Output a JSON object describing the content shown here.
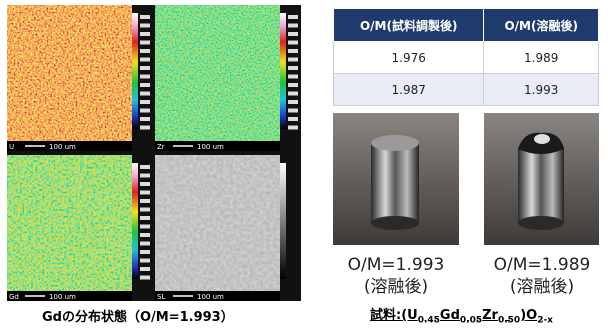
{
  "maps": [
    {
      "element": "U",
      "scale": "100 um"
    },
    {
      "element": "Zr",
      "scale": "100 um"
    },
    {
      "element": "Gd",
      "scale": "100 um"
    },
    {
      "element": "SL",
      "scale": "100 um"
    }
  ],
  "map_caption": "Gdの分布状態（O/M=1.993）",
  "table": {
    "header": [
      "O/M(試料調製後)",
      "O/M(溶融後)"
    ],
    "rows": [
      [
        "1.976",
        "1.989"
      ],
      [
        "1.987",
        "1.993"
      ]
    ]
  },
  "photos": [
    {
      "label": "O/M=1.993",
      "note": "(溶融後)"
    },
    {
      "label": "O/M=1.989",
      "note": "(溶融後)"
    }
  ],
  "formula": [
    {
      "text": "試料:(U",
      "sub": false
    },
    {
      "text": "0.45",
      "sub": true
    },
    {
      "text": "Gd",
      "sub": false
    },
    {
      "text": "0.05",
      "sub": true
    },
    {
      "text": "Zr",
      "sub": false
    },
    {
      "text": "0.50",
      "sub": true
    },
    {
      "text": ")O",
      "sub": false
    },
    {
      "text": "2-x",
      "sub": true
    }
  ]
}
